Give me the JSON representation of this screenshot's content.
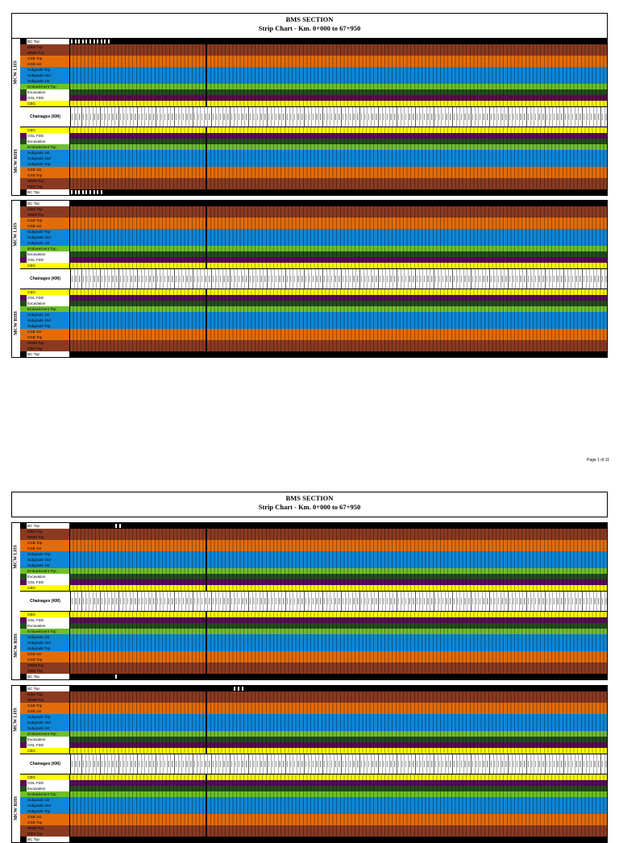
{
  "title": "BMS SECTION",
  "subtitle": "Strip Chart - Km. 0+000 to 67+950",
  "chainage_label": "Chainages (KM)",
  "page_label": "Page 1 of 11",
  "side_labels": {
    "lhs": "MCW LHS",
    "rhs": "MCW RHS"
  },
  "upper_layers": [
    {
      "name": "BC Top",
      "color": "#000000"
    },
    {
      "name": "DBM Top",
      "color": "#8b3a22"
    },
    {
      "name": "WMM Top",
      "color": "#8b3a22"
    },
    {
      "name": "GSB Top",
      "color": "#e36c0a"
    },
    {
      "name": "GSB 1st",
      "color": "#e36c0a"
    },
    {
      "name": "Subgrade Top",
      "color": "#0f86d6"
    },
    {
      "name": "Subgrade 2nd",
      "color": "#0f86d6"
    },
    {
      "name": "Subgrade 1st",
      "color": "#0f86d6"
    },
    {
      "name": "Embankment Top",
      "color": "#6fbf2c"
    },
    {
      "name": "Excavation",
      "color": "#244d1c"
    },
    {
      "name": "OGL FDD",
      "color": "#5a0a5a"
    },
    {
      "name": "CBG",
      "color": "#ffff00"
    }
  ]
}
